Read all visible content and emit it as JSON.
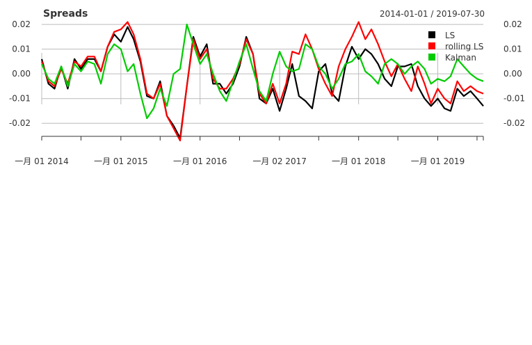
{
  "chart": {
    "title": "Spreads",
    "date_range": "2014-01-01 / 2019-07-30"
  },
  "chart_data": {
    "type": "line",
    "title": "Spreads",
    "subtitle": "2014-01-01 / 2019-07-30",
    "x_start": "2014-01-01",
    "x_end": "2019-07-30",
    "x_ticks": [
      "一月 01 2014",
      "一月 01 2015",
      "一月 01 2016",
      "一月 02 2017",
      "一月 01 2018",
      "一月 01 2019"
    ],
    "x_tick_dates": [
      "2014-01-01",
      "2015-01-01",
      "2016-01-01",
      "2017-01-02",
      "2018-01-01",
      "2019-01-01"
    ],
    "ylim": [
      -0.025,
      0.022
    ],
    "y_ticks": [
      -0.02,
      -0.01,
      0.0,
      0.01,
      0.02
    ],
    "y_tick_labels": [
      "-0.02",
      "-0.01",
      "0.00",
      "0.01",
      "0.02"
    ],
    "grid": "horizontal",
    "legend_position": "top-right",
    "series": [
      {
        "name": "LS",
        "color": "#000000",
        "points": [
          [
            "2014-01-01",
            0.006
          ],
          [
            "2014-02-01",
            -0.004
          ],
          [
            "2014-03-01",
            -0.006
          ],
          [
            "2014-04-01",
            0.003
          ],
          [
            "2014-05-01",
            -0.006
          ],
          [
            "2014-06-01",
            0.006
          ],
          [
            "2014-07-01",
            0.002
          ],
          [
            "2014-08-01",
            0.006
          ],
          [
            "2014-09-01",
            0.006
          ],
          [
            "2014-10-01",
            0.001
          ],
          [
            "2014-11-01",
            0.011
          ],
          [
            "2014-12-01",
            0.016
          ],
          [
            "2015-01-01",
            0.013
          ],
          [
            "2015-02-01",
            0.019
          ],
          [
            "2015-03-01",
            0.014
          ],
          [
            "2015-04-01",
            0.005
          ],
          [
            "2015-05-01",
            -0.009
          ],
          [
            "2015-06-01",
            -0.01
          ],
          [
            "2015-07-01",
            -0.003
          ],
          [
            "2015-08-01",
            -0.017
          ],
          [
            "2015-09-01",
            -0.021
          ],
          [
            "2015-10-01",
            -0.026
          ],
          [
            "2015-11-01",
            -0.005
          ],
          [
            "2015-12-01",
            0.015
          ],
          [
            "2016-01-01",
            0.007
          ],
          [
            "2016-02-01",
            0.012
          ],
          [
            "2016-03-01",
            -0.004
          ],
          [
            "2016-04-01",
            -0.004
          ],
          [
            "2016-05-01",
            -0.008
          ],
          [
            "2016-06-01",
            -0.004
          ],
          [
            "2016-07-01",
            0.003
          ],
          [
            "2016-08-01",
            0.015
          ],
          [
            "2016-09-01",
            0.008
          ],
          [
            "2016-10-01",
            -0.01
          ],
          [
            "2016-11-01",
            -0.012
          ],
          [
            "2016-12-01",
            -0.006
          ],
          [
            "2017-01-02",
            -0.015
          ],
          [
            "2017-02-01",
            -0.006
          ],
          [
            "2017-03-01",
            0.004
          ],
          [
            "2017-04-01",
            -0.009
          ],
          [
            "2017-05-01",
            -0.011
          ],
          [
            "2017-06-01",
            -0.014
          ],
          [
            "2017-07-01",
            0.001
          ],
          [
            "2017-08-01",
            0.004
          ],
          [
            "2017-09-01",
            -0.008
          ],
          [
            "2017-10-01",
            -0.011
          ],
          [
            "2017-11-01",
            0.003
          ],
          [
            "2017-12-01",
            0.011
          ],
          [
            "2018-01-01",
            0.006
          ],
          [
            "2018-02-01",
            0.01
          ],
          [
            "2018-03-01",
            0.008
          ],
          [
            "2018-04-01",
            0.004
          ],
          [
            "2018-05-01",
            -0.002
          ],
          [
            "2018-06-01",
            -0.005
          ],
          [
            "2018-07-01",
            0.003
          ],
          [
            "2018-08-01",
            0.003
          ],
          [
            "2018-09-01",
            0.004
          ],
          [
            "2018-10-01",
            -0.005
          ],
          [
            "2018-11-01",
            -0.01
          ],
          [
            "2018-12-01",
            -0.013
          ],
          [
            "2019-01-01",
            -0.01
          ],
          [
            "2019-02-01",
            -0.014
          ],
          [
            "2019-03-01",
            -0.015
          ],
          [
            "2019-04-01",
            -0.006
          ],
          [
            "2019-05-01",
            -0.009
          ],
          [
            "2019-06-01",
            -0.007
          ],
          [
            "2019-07-01",
            -0.01
          ],
          [
            "2019-07-30",
            -0.013
          ]
        ]
      },
      {
        "name": "rolling LS",
        "color": "#ff0000",
        "points": [
          [
            "2014-01-01",
            0.005
          ],
          [
            "2014-02-01",
            -0.003
          ],
          [
            "2014-03-01",
            -0.005
          ],
          [
            "2014-04-01",
            0.002
          ],
          [
            "2014-05-01",
            -0.004
          ],
          [
            "2014-06-01",
            0.005
          ],
          [
            "2014-07-01",
            0.003
          ],
          [
            "2014-08-01",
            0.007
          ],
          [
            "2014-09-01",
            0.007
          ],
          [
            "2014-10-01",
            0.001
          ],
          [
            "2014-11-01",
            0.011
          ],
          [
            "2014-12-01",
            0.017
          ],
          [
            "2015-01-01",
            0.018
          ],
          [
            "2015-02-01",
            0.021
          ],
          [
            "2015-03-01",
            0.016
          ],
          [
            "2015-04-01",
            0.006
          ],
          [
            "2015-05-01",
            -0.008
          ],
          [
            "2015-06-01",
            -0.01
          ],
          [
            "2015-07-01",
            -0.004
          ],
          [
            "2015-08-01",
            -0.017
          ],
          [
            "2015-09-01",
            -0.022
          ],
          [
            "2015-10-01",
            -0.027
          ],
          [
            "2015-11-01",
            -0.005
          ],
          [
            "2015-12-01",
            0.014
          ],
          [
            "2016-01-01",
            0.006
          ],
          [
            "2016-02-01",
            0.01
          ],
          [
            "2016-03-01",
            -0.002
          ],
          [
            "2016-04-01",
            -0.006
          ],
          [
            "2016-05-01",
            -0.006
          ],
          [
            "2016-06-01",
            -0.002
          ],
          [
            "2016-07-01",
            0.004
          ],
          [
            "2016-08-01",
            0.014
          ],
          [
            "2016-09-01",
            0.008
          ],
          [
            "2016-10-01",
            -0.008
          ],
          [
            "2016-11-01",
            -0.012
          ],
          [
            "2016-12-01",
            -0.004
          ],
          [
            "2017-01-02",
            -0.012
          ],
          [
            "2017-02-01",
            -0.004
          ],
          [
            "2017-03-01",
            0.009
          ],
          [
            "2017-04-01",
            0.008
          ],
          [
            "2017-05-01",
            0.016
          ],
          [
            "2017-06-01",
            0.01
          ],
          [
            "2017-07-01",
            0.002
          ],
          [
            "2017-08-01",
            -0.004
          ],
          [
            "2017-09-01",
            -0.009
          ],
          [
            "2017-10-01",
            0.003
          ],
          [
            "2017-11-01",
            0.01
          ],
          [
            "2017-12-01",
            0.015
          ],
          [
            "2018-01-01",
            0.021
          ],
          [
            "2018-02-01",
            0.014
          ],
          [
            "2018-03-01",
            0.018
          ],
          [
            "2018-04-01",
            0.012
          ],
          [
            "2018-05-01",
            0.005
          ],
          [
            "2018-06-01",
            -0.001
          ],
          [
            "2018-07-01",
            0.004
          ],
          [
            "2018-08-01",
            -0.002
          ],
          [
            "2018-09-01",
            -0.007
          ],
          [
            "2018-10-01",
            0.003
          ],
          [
            "2018-11-01",
            -0.004
          ],
          [
            "2018-12-01",
            -0.012
          ],
          [
            "2019-01-01",
            -0.006
          ],
          [
            "2019-02-01",
            -0.01
          ],
          [
            "2019-03-01",
            -0.012
          ],
          [
            "2019-04-01",
            -0.003
          ],
          [
            "2019-05-01",
            -0.007
          ],
          [
            "2019-06-01",
            -0.005
          ],
          [
            "2019-07-01",
            -0.007
          ],
          [
            "2019-07-30",
            -0.008
          ]
        ]
      },
      {
        "name": "Kalman",
        "color": "#00cc00",
        "points": [
          [
            "2014-01-01",
            0.004
          ],
          [
            "2014-02-01",
            -0.002
          ],
          [
            "2014-03-01",
            -0.004
          ],
          [
            "2014-04-01",
            0.003
          ],
          [
            "2014-05-01",
            -0.005
          ],
          [
            "2014-06-01",
            0.004
          ],
          [
            "2014-07-01",
            0.001
          ],
          [
            "2014-08-01",
            0.005
          ],
          [
            "2014-09-01",
            0.004
          ],
          [
            "2014-10-01",
            -0.004
          ],
          [
            "2014-11-01",
            0.008
          ],
          [
            "2014-12-01",
            0.012
          ],
          [
            "2015-01-01",
            0.01
          ],
          [
            "2015-02-01",
            0.001
          ],
          [
            "2015-03-01",
            0.004
          ],
          [
            "2015-04-01",
            -0.008
          ],
          [
            "2015-05-01",
            -0.018
          ],
          [
            "2015-06-01",
            -0.014
          ],
          [
            "2015-07-01",
            -0.006
          ],
          [
            "2015-08-01",
            -0.013
          ],
          [
            "2015-09-01",
            0.0
          ],
          [
            "2015-10-01",
            0.002
          ],
          [
            "2015-11-01",
            0.02
          ],
          [
            "2015-12-01",
            0.012
          ],
          [
            "2016-01-01",
            0.004
          ],
          [
            "2016-02-01",
            0.008
          ],
          [
            "2016-03-01",
            0.0
          ],
          [
            "2016-04-01",
            -0.007
          ],
          [
            "2016-05-01",
            -0.011
          ],
          [
            "2016-06-01",
            -0.003
          ],
          [
            "2016-07-01",
            0.005
          ],
          [
            "2016-08-01",
            0.012
          ],
          [
            "2016-09-01",
            0.002
          ],
          [
            "2016-10-01",
            -0.007
          ],
          [
            "2016-11-01",
            -0.011
          ],
          [
            "2016-12-01",
            0.0
          ],
          [
            "2017-01-02",
            0.009
          ],
          [
            "2017-02-01",
            0.003
          ],
          [
            "2017-03-01",
            0.001
          ],
          [
            "2017-04-01",
            0.002
          ],
          [
            "2017-05-01",
            0.012
          ],
          [
            "2017-06-01",
            0.01
          ],
          [
            "2017-07-01",
            0.003
          ],
          [
            "2017-08-01",
            0.0
          ],
          [
            "2017-09-01",
            -0.006
          ],
          [
            "2017-10-01",
            -0.002
          ],
          [
            "2017-11-01",
            0.004
          ],
          [
            "2017-12-01",
            0.005
          ],
          [
            "2018-01-01",
            0.008
          ],
          [
            "2018-02-01",
            0.001
          ],
          [
            "2018-03-01",
            -0.001
          ],
          [
            "2018-04-01",
            -0.004
          ],
          [
            "2018-05-01",
            0.004
          ],
          [
            "2018-06-01",
            0.006
          ],
          [
            "2018-07-01",
            0.004
          ],
          [
            "2018-08-01",
            0.0
          ],
          [
            "2018-09-01",
            0.003
          ],
          [
            "2018-10-01",
            0.005
          ],
          [
            "2018-11-01",
            0.002
          ],
          [
            "2018-12-01",
            -0.004
          ],
          [
            "2019-01-01",
            -0.002
          ],
          [
            "2019-02-01",
            -0.003
          ],
          [
            "2019-03-01",
            -0.001
          ],
          [
            "2019-04-01",
            0.006
          ],
          [
            "2019-05-01",
            0.003
          ],
          [
            "2019-06-01",
            0.0
          ],
          [
            "2019-07-01",
            -0.002
          ],
          [
            "2019-07-30",
            -0.003
          ]
        ]
      }
    ]
  }
}
